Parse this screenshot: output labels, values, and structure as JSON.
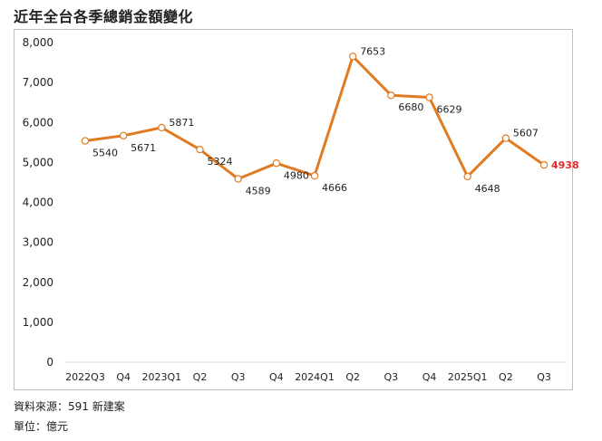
{
  "title": "近年全台各季總銷金額變化",
  "footnotes": {
    "source": "資料來源：591 新建案",
    "unit": "單位：億元"
  },
  "colors": {
    "line": "#E07B22",
    "marker_fill": "#ffffff",
    "highlight_label": "#E8262A",
    "axis_text": "#222222",
    "grid": "#d9d9d9"
  },
  "chart_data": {
    "type": "line",
    "title": "近年全台各季總銷金額變化",
    "categories": [
      "2022Q3",
      "Q4",
      "2023Q1",
      "Q2",
      "Q3",
      "Q4",
      "2024Q1",
      "Q2",
      "Q3",
      "Q4",
      "2025Q1",
      "Q2",
      "Q3"
    ],
    "series": [
      {
        "values": [
          5540,
          5671,
          5871,
          5324,
          4589,
          4980,
          4666,
          7653,
          6680,
          6629,
          4648,
          5607,
          4938
        ]
      }
    ],
    "data_labels": [
      "5540",
      "5671",
      "5871",
      "5324",
      "4589",
      "4980",
      "4666",
      "7653",
      "6680",
      "6629",
      "4648",
      "5607",
      "4938"
    ],
    "highlight_index": 12,
    "y_ticks": [
      0,
      1000,
      2000,
      3000,
      4000,
      5000,
      6000,
      7000,
      8000
    ],
    "y_tick_labels": [
      "0",
      "1,000",
      "2,000",
      "3,000",
      "4,000",
      "5,000",
      "6,000",
      "7,000",
      "8,000"
    ],
    "ylim": [
      0,
      8000
    ],
    "grid": false,
    "legend": "none"
  }
}
